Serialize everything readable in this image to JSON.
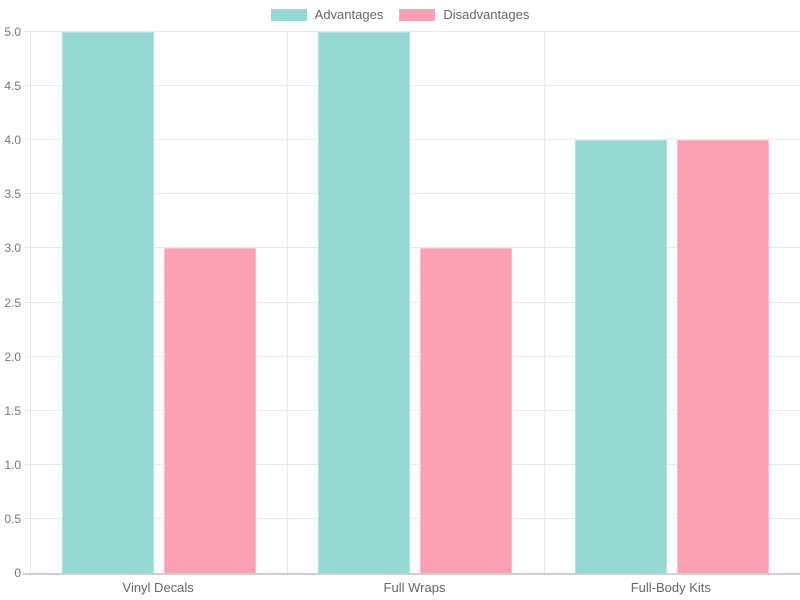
{
  "chart_data": {
    "type": "bar",
    "title": "",
    "categories": [
      "Vinyl Decals",
      "Full Wraps",
      "Full-Body Kits"
    ],
    "series": [
      {
        "name": "Advantages",
        "values": [
          5,
          5,
          4
        ],
        "color": "#96d9d3",
        "border_color": "#aee3de"
      },
      {
        "name": "Disadvantages",
        "values": [
          3,
          3,
          4
        ],
        "color": "#fca1b4",
        "border_color": "#fdbcc9"
      }
    ],
    "ylim": [
      0,
      5
    ],
    "ytick_step": 0.5,
    "ytick_labels": [
      "0",
      "0.5",
      "1.0",
      "1.5",
      "2.0",
      "2.5",
      "3.0",
      "3.5",
      "4.0",
      "4.5",
      "5.0"
    ],
    "grid": true,
    "legend_position": "top",
    "gridline_color": "#e9e9e9",
    "axis_line_color": "#cfcfcf",
    "tick_label_color": "#777777",
    "category_label_color": "#666666"
  }
}
